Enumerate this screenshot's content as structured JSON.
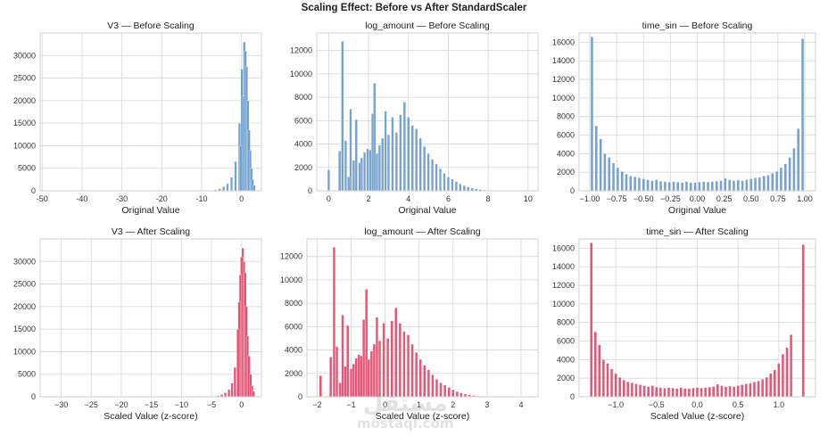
{
  "figure": {
    "suptitle": "Scaling Effect: Before vs After StandardScaler"
  },
  "colors": {
    "before": "#6c9bc9",
    "after": "#e4486b"
  },
  "watermark": {
    "arabic": "مستقل",
    "latin": "mostaql.com"
  },
  "chart_data": [
    {
      "id": "v3-before",
      "type": "bar",
      "title": "V3 — Before Scaling",
      "xlabel": "Original Value",
      "ylabel": "",
      "color": "before",
      "xlim": [
        -50.5,
        5
      ],
      "ylim": [
        0,
        35000
      ],
      "xticks": [
        -50,
        -40,
        -30,
        -20,
        -10,
        0
      ],
      "yticks": [
        0,
        5000,
        10000,
        15000,
        20000,
        25000,
        30000
      ],
      "bins": [
        {
          "x": -7.5,
          "y": 100
        },
        {
          "x": -6.5,
          "y": 250
        },
        {
          "x": -5.5,
          "y": 500
        },
        {
          "x": -4.5,
          "y": 900
        },
        {
          "x": -3.5,
          "y": 1600
        },
        {
          "x": -2.5,
          "y": 3000
        },
        {
          "x": -1.5,
          "y": 6500
        },
        {
          "x": -0.5,
          "y": 15000
        },
        {
          "x": 0.1,
          "y": 27000
        },
        {
          "x": 0.7,
          "y": 33000
        },
        {
          "x": 1.3,
          "y": 27500
        },
        {
          "x": 1.9,
          "y": 13500
        },
        {
          "x": 2.5,
          "y": 5000
        },
        {
          "x": 3.2,
          "y": 1200
        },
        {
          "x": -0.2,
          "y": 10000
        },
        {
          "x": 0.4,
          "y": 21000
        },
        {
          "x": 1.0,
          "y": 31000
        },
        {
          "x": 1.6,
          "y": 20000
        },
        {
          "x": 2.2,
          "y": 9000
        },
        {
          "x": 2.8,
          "y": 2500
        }
      ]
    },
    {
      "id": "log-before",
      "type": "bar",
      "title": "log_amount — Before Scaling",
      "xlabel": "Original Value",
      "ylabel": "",
      "color": "before",
      "xlim": [
        -0.6,
        10.5
      ],
      "ylim": [
        0,
        13500
      ],
      "xticks": [
        0,
        2,
        4,
        6,
        8,
        10
      ],
      "yticks": [
        0,
        2000,
        4000,
        6000,
        8000,
        10000,
        12000
      ],
      "bins": [
        {
          "x": 0.0,
          "y": 1800
        },
        {
          "x": 0.55,
          "y": 3400
        },
        {
          "x": 0.69,
          "y": 12800
        },
        {
          "x": 0.85,
          "y": 4300
        },
        {
          "x": 1.0,
          "y": 1200
        },
        {
          "x": 1.1,
          "y": 7000
        },
        {
          "x": 1.25,
          "y": 2600
        },
        {
          "x": 1.38,
          "y": 6100
        },
        {
          "x": 1.55,
          "y": 2400
        },
        {
          "x": 1.65,
          "y": 2800
        },
        {
          "x": 1.8,
          "y": 3300
        },
        {
          "x": 1.95,
          "y": 3600
        },
        {
          "x": 2.08,
          "y": 3500
        },
        {
          "x": 2.2,
          "y": 6600
        },
        {
          "x": 2.3,
          "y": 9200
        },
        {
          "x": 2.42,
          "y": 3200
        },
        {
          "x": 2.55,
          "y": 3900
        },
        {
          "x": 2.7,
          "y": 4500
        },
        {
          "x": 2.85,
          "y": 6800
        },
        {
          "x": 3.0,
          "y": 4800
        },
        {
          "x": 3.2,
          "y": 6300
        },
        {
          "x": 3.4,
          "y": 5000
        },
        {
          "x": 3.6,
          "y": 6500
        },
        {
          "x": 3.8,
          "y": 7600
        },
        {
          "x": 4.0,
          "y": 6300
        },
        {
          "x": 4.2,
          "y": 5600
        },
        {
          "x": 4.4,
          "y": 5300
        },
        {
          "x": 4.6,
          "y": 4500
        },
        {
          "x": 4.8,
          "y": 3800
        },
        {
          "x": 5.0,
          "y": 3200
        },
        {
          "x": 5.2,
          "y": 2700
        },
        {
          "x": 5.4,
          "y": 2300
        },
        {
          "x": 5.6,
          "y": 1900
        },
        {
          "x": 5.8,
          "y": 1500
        },
        {
          "x": 6.0,
          "y": 1200
        },
        {
          "x": 6.2,
          "y": 1000
        },
        {
          "x": 6.4,
          "y": 800
        },
        {
          "x": 6.6,
          "y": 600
        },
        {
          "x": 6.8,
          "y": 450
        },
        {
          "x": 7.0,
          "y": 330
        },
        {
          "x": 7.2,
          "y": 240
        },
        {
          "x": 7.4,
          "y": 160
        },
        {
          "x": 7.6,
          "y": 110
        },
        {
          "x": 7.8,
          "y": 70
        }
      ]
    },
    {
      "id": "sin-before",
      "type": "bar",
      "title": "time_sin — Before Scaling",
      "xlabel": "Original Value",
      "ylabel": "",
      "color": "before",
      "xlim": [
        -1.1,
        1.1
      ],
      "ylim": [
        0,
        17000
      ],
      "xticks": [
        -1.0,
        -0.75,
        -0.5,
        -0.25,
        0.0,
        0.25,
        0.5,
        0.75,
        1.0
      ],
      "xtick_labels": [
        "−1.00",
        "−0.75",
        "−0.50",
        "−0.25",
        "0.00",
        "0.25",
        "0.50",
        "0.75",
        "1.00"
      ],
      "yticks": [
        0,
        2000,
        4000,
        6000,
        8000,
        10000,
        12000,
        14000,
        16000
      ],
      "bins": [
        {
          "x": -0.98,
          "y": 16600
        },
        {
          "x": -0.94,
          "y": 7000
        },
        {
          "x": -0.9,
          "y": 5600
        },
        {
          "x": -0.86,
          "y": 4000
        },
        {
          "x": -0.82,
          "y": 3600
        },
        {
          "x": -0.78,
          "y": 3000
        },
        {
          "x": -0.74,
          "y": 2500
        },
        {
          "x": -0.7,
          "y": 2100
        },
        {
          "x": -0.66,
          "y": 1800
        },
        {
          "x": -0.62,
          "y": 1600
        },
        {
          "x": -0.58,
          "y": 1500
        },
        {
          "x": -0.54,
          "y": 1400
        },
        {
          "x": -0.5,
          "y": 1300
        },
        {
          "x": -0.46,
          "y": 1200
        },
        {
          "x": -0.42,
          "y": 1100
        },
        {
          "x": -0.38,
          "y": 1200
        },
        {
          "x": -0.34,
          "y": 1050
        },
        {
          "x": -0.3,
          "y": 1000
        },
        {
          "x": -0.26,
          "y": 950
        },
        {
          "x": -0.22,
          "y": 1000
        },
        {
          "x": -0.18,
          "y": 950
        },
        {
          "x": -0.14,
          "y": 900
        },
        {
          "x": -0.1,
          "y": 1000
        },
        {
          "x": -0.06,
          "y": 900
        },
        {
          "x": -0.02,
          "y": 900
        },
        {
          "x": 0.02,
          "y": 950
        },
        {
          "x": 0.06,
          "y": 1000
        },
        {
          "x": 0.1,
          "y": 950
        },
        {
          "x": 0.14,
          "y": 1000
        },
        {
          "x": 0.18,
          "y": 1050
        },
        {
          "x": 0.22,
          "y": 1100
        },
        {
          "x": 0.26,
          "y": 1350
        },
        {
          "x": 0.3,
          "y": 1200
        },
        {
          "x": 0.34,
          "y": 1100
        },
        {
          "x": 0.38,
          "y": 1150
        },
        {
          "x": 0.42,
          "y": 1100
        },
        {
          "x": 0.46,
          "y": 1200
        },
        {
          "x": 0.5,
          "y": 1300
        },
        {
          "x": 0.54,
          "y": 1400
        },
        {
          "x": 0.58,
          "y": 1450
        },
        {
          "x": 0.62,
          "y": 1600
        },
        {
          "x": 0.66,
          "y": 1700
        },
        {
          "x": 0.7,
          "y": 1900
        },
        {
          "x": 0.74,
          "y": 2100
        },
        {
          "x": 0.78,
          "y": 2500
        },
        {
          "x": 0.82,
          "y": 2900
        },
        {
          "x": 0.86,
          "y": 3600
        },
        {
          "x": 0.9,
          "y": 4600
        },
        {
          "x": 0.94,
          "y": 6700
        },
        {
          "x": 0.98,
          "y": 16400
        }
      ]
    },
    {
      "id": "v3-after",
      "type": "bar",
      "title": "V3 — After Scaling",
      "xlabel": "Scaled Value (z-score)",
      "ylabel": "",
      "color": "after",
      "xlim": [
        -33.5,
        3.3
      ],
      "ylim": [
        0,
        35000
      ],
      "xticks": [
        -30,
        -25,
        -20,
        -15,
        -10,
        -5,
        0
      ],
      "xtick_labels": [
        "−30",
        "−25",
        "−20",
        "−15",
        "−10",
        "−5",
        "0"
      ],
      "yticks": [
        0,
        5000,
        10000,
        15000,
        20000,
        25000,
        30000
      ],
      "bins": [
        {
          "x": -4.5,
          "y": 100
        },
        {
          "x": -3.9,
          "y": 250
        },
        {
          "x": -3.3,
          "y": 500
        },
        {
          "x": -2.7,
          "y": 900
        },
        {
          "x": -2.1,
          "y": 1600
        },
        {
          "x": -1.6,
          "y": 3000
        },
        {
          "x": -1.1,
          "y": 6500
        },
        {
          "x": -0.6,
          "y": 15000
        },
        {
          "x": -0.2,
          "y": 27000
        },
        {
          "x": 0.2,
          "y": 33000
        },
        {
          "x": 0.6,
          "y": 27500
        },
        {
          "x": 1.0,
          "y": 13500
        },
        {
          "x": 1.5,
          "y": 5000
        },
        {
          "x": 2.0,
          "y": 1200
        },
        {
          "x": -0.4,
          "y": 21000
        },
        {
          "x": 0.0,
          "y": 31000
        },
        {
          "x": 0.4,
          "y": 30000
        },
        {
          "x": 0.8,
          "y": 20000
        },
        {
          "x": 1.25,
          "y": 9000
        },
        {
          "x": 1.75,
          "y": 2500
        }
      ]
    },
    {
      "id": "log-after",
      "type": "bar",
      "title": "log_amount — After Scaling",
      "xlabel": "Scaled Value (z-score)",
      "ylabel": "",
      "color": "after",
      "xlim": [
        -2.3,
        4.5
      ],
      "ylim": [
        0,
        13500
      ],
      "xticks": [
        -2,
        -1,
        0,
        1,
        2,
        3,
        4
      ],
      "xtick_labels": [
        "−2",
        "−1",
        "0",
        "1",
        "2",
        "3",
        "4"
      ],
      "yticks": [
        0,
        2000,
        4000,
        6000,
        8000,
        10000,
        12000
      ],
      "bins": [
        {
          "x": -1.9,
          "y": 1800
        },
        {
          "x": -1.6,
          "y": 3400
        },
        {
          "x": -1.5,
          "y": 12800
        },
        {
          "x": -1.42,
          "y": 4300
        },
        {
          "x": -1.32,
          "y": 1200
        },
        {
          "x": -1.25,
          "y": 7000
        },
        {
          "x": -1.17,
          "y": 2600
        },
        {
          "x": -1.1,
          "y": 6100
        },
        {
          "x": -1.0,
          "y": 2400
        },
        {
          "x": -0.93,
          "y": 2800
        },
        {
          "x": -0.85,
          "y": 3300
        },
        {
          "x": -0.77,
          "y": 3600
        },
        {
          "x": -0.7,
          "y": 3500
        },
        {
          "x": -0.63,
          "y": 6600
        },
        {
          "x": -0.55,
          "y": 9200
        },
        {
          "x": -0.48,
          "y": 3200
        },
        {
          "x": -0.4,
          "y": 3900
        },
        {
          "x": -0.32,
          "y": 4500
        },
        {
          "x": -0.24,
          "y": 6800
        },
        {
          "x": -0.16,
          "y": 4800
        },
        {
          "x": -0.04,
          "y": 6300
        },
        {
          "x": 0.08,
          "y": 5000
        },
        {
          "x": 0.2,
          "y": 6500
        },
        {
          "x": 0.32,
          "y": 7600
        },
        {
          "x": 0.44,
          "y": 6300
        },
        {
          "x": 0.56,
          "y": 5600
        },
        {
          "x": 0.68,
          "y": 5300
        },
        {
          "x": 0.8,
          "y": 4500
        },
        {
          "x": 0.92,
          "y": 3800
        },
        {
          "x": 1.04,
          "y": 3200
        },
        {
          "x": 1.16,
          "y": 2700
        },
        {
          "x": 1.28,
          "y": 2300
        },
        {
          "x": 1.4,
          "y": 1900
        },
        {
          "x": 1.52,
          "y": 1500
        },
        {
          "x": 1.64,
          "y": 1200
        },
        {
          "x": 1.76,
          "y": 1000
        },
        {
          "x": 1.88,
          "y": 800
        },
        {
          "x": 2.0,
          "y": 600
        },
        {
          "x": 2.12,
          "y": 450
        },
        {
          "x": 2.24,
          "y": 330
        },
        {
          "x": 2.36,
          "y": 240
        },
        {
          "x": 2.48,
          "y": 160
        },
        {
          "x": 2.6,
          "y": 110
        },
        {
          "x": 2.72,
          "y": 70
        }
      ]
    },
    {
      "id": "sin-after",
      "type": "bar",
      "title": "time_sin — After Scaling",
      "xlabel": "Scaled Value (z-score)",
      "ylabel": "",
      "color": "after",
      "xlim": [
        -1.45,
        1.45
      ],
      "ylim": [
        0,
        17000
      ],
      "xticks": [
        -1.0,
        -0.5,
        0.0,
        0.5,
        1.0
      ],
      "xtick_labels": [
        "−1.0",
        "−0.5",
        "0.0",
        "0.5",
        "1.0"
      ],
      "yticks": [
        0,
        2000,
        4000,
        6000,
        8000,
        10000,
        12000,
        14000,
        16000
      ],
      "bins": [
        {
          "x": -1.3,
          "y": 16600
        },
        {
          "x": -1.25,
          "y": 7000
        },
        {
          "x": -1.2,
          "y": 5600
        },
        {
          "x": -1.15,
          "y": 4000
        },
        {
          "x": -1.1,
          "y": 3600
        },
        {
          "x": -1.05,
          "y": 3000
        },
        {
          "x": -1.0,
          "y": 2500
        },
        {
          "x": -0.95,
          "y": 2100
        },
        {
          "x": -0.9,
          "y": 1800
        },
        {
          "x": -0.85,
          "y": 1600
        },
        {
          "x": -0.8,
          "y": 1500
        },
        {
          "x": -0.75,
          "y": 1400
        },
        {
          "x": -0.7,
          "y": 1300
        },
        {
          "x": -0.65,
          "y": 1200
        },
        {
          "x": -0.6,
          "y": 1100
        },
        {
          "x": -0.55,
          "y": 1200
        },
        {
          "x": -0.5,
          "y": 1050
        },
        {
          "x": -0.45,
          "y": 1000
        },
        {
          "x": -0.4,
          "y": 950
        },
        {
          "x": -0.35,
          "y": 1000
        },
        {
          "x": -0.3,
          "y": 950
        },
        {
          "x": -0.25,
          "y": 900
        },
        {
          "x": -0.2,
          "y": 1000
        },
        {
          "x": -0.15,
          "y": 900
        },
        {
          "x": -0.1,
          "y": 900
        },
        {
          "x": -0.05,
          "y": 950
        },
        {
          "x": 0.0,
          "y": 1000
        },
        {
          "x": 0.05,
          "y": 950
        },
        {
          "x": 0.1,
          "y": 1000
        },
        {
          "x": 0.15,
          "y": 1050
        },
        {
          "x": 0.2,
          "y": 1100
        },
        {
          "x": 0.25,
          "y": 1350
        },
        {
          "x": 0.3,
          "y": 1200
        },
        {
          "x": 0.35,
          "y": 1100
        },
        {
          "x": 0.4,
          "y": 1150
        },
        {
          "x": 0.45,
          "y": 1100
        },
        {
          "x": 0.5,
          "y": 1200
        },
        {
          "x": 0.55,
          "y": 1300
        },
        {
          "x": 0.6,
          "y": 1400
        },
        {
          "x": 0.65,
          "y": 1450
        },
        {
          "x": 0.7,
          "y": 1600
        },
        {
          "x": 0.75,
          "y": 1700
        },
        {
          "x": 0.8,
          "y": 1900
        },
        {
          "x": 0.85,
          "y": 2100
        },
        {
          "x": 0.9,
          "y": 2500
        },
        {
          "x": 0.95,
          "y": 2900
        },
        {
          "x": 1.0,
          "y": 3600
        },
        {
          "x": 1.05,
          "y": 4600
        },
        {
          "x": 1.1,
          "y": 5300
        },
        {
          "x": 1.15,
          "y": 6700
        },
        {
          "x": 1.3,
          "y": 16400
        }
      ]
    }
  ]
}
